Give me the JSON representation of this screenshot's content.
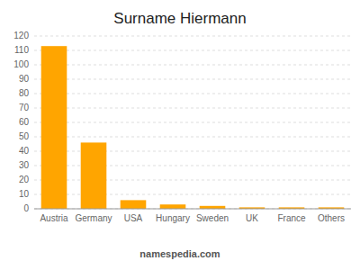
{
  "chart_data": {
    "type": "bar",
    "title": "Surname Hiermann",
    "categories": [
      "Austria",
      "Germany",
      "USA",
      "Hungary",
      "Sweden",
      "UK",
      "France",
      "Others"
    ],
    "values": [
      113,
      46,
      6,
      3,
      2,
      1,
      1,
      1
    ],
    "color": "#FFA500",
    "ylim": [
      0,
      120
    ],
    "yticks": [
      0,
      10,
      20,
      30,
      40,
      50,
      60,
      70,
      80,
      90,
      100,
      110,
      120
    ],
    "grid": true,
    "annotations": [
      "namespedia.com"
    ]
  }
}
